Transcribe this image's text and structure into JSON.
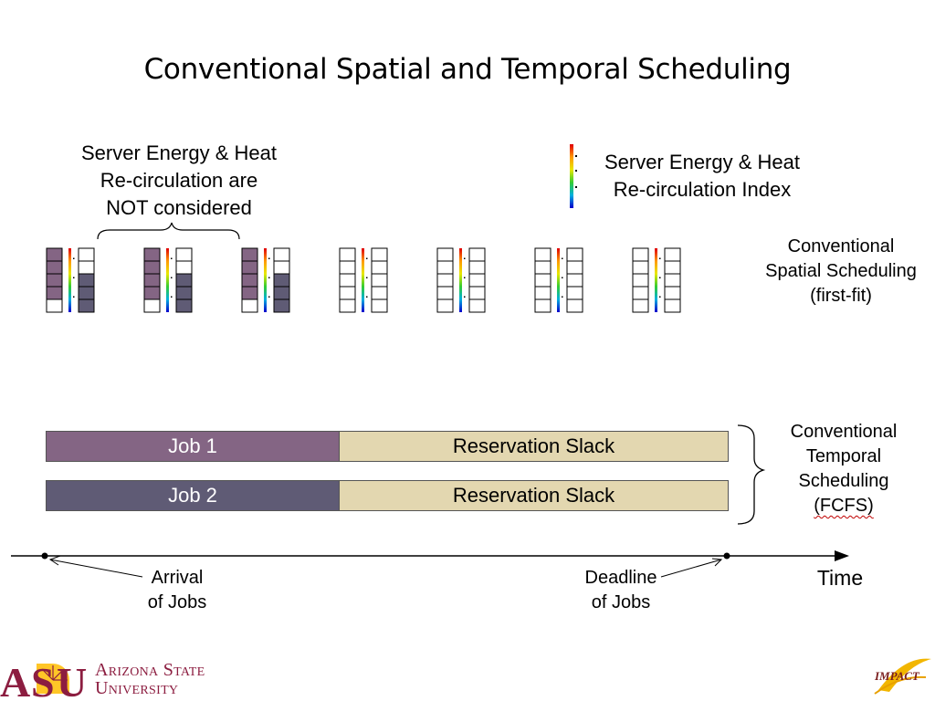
{
  "title": "Conventional Spatial and Temporal Scheduling",
  "not_considered_label": [
    "Server Energy & Heat",
    "Re-circulation are",
    "NOT considered"
  ],
  "legend_label": [
    "Server Energy & Heat",
    "Re-circulation Index"
  ],
  "spatial_label": [
    "Conventional",
    "Spatial Scheduling",
    "(first-fit)"
  ],
  "temporal_label": [
    "Conventional",
    "Temporal",
    "Scheduling",
    "(FCFS)"
  ],
  "jobs": [
    {
      "name": "Job 1",
      "slack": "Reservation Slack",
      "color": "#846584"
    },
    {
      "name": "Job 2",
      "slack": "Reservation Slack",
      "color": "#5f5b75"
    }
  ],
  "timeline": {
    "time_label": "Time",
    "arrival": [
      "Arrival",
      "of Jobs"
    ],
    "deadline": [
      "Deadline",
      "of Jobs"
    ]
  },
  "server_units": [
    {
      "left_used": 4,
      "right_used": 3
    },
    {
      "left_used": 4,
      "right_used": 3
    },
    {
      "left_used": 4,
      "right_used": 3
    },
    {
      "left_used": 0,
      "right_used": 0
    },
    {
      "left_used": 0,
      "right_used": 0
    },
    {
      "left_used": 0,
      "right_used": 0
    },
    {
      "left_used": 0,
      "right_used": 0
    }
  ],
  "colors": {
    "job1": "#846584",
    "job2": "#5f5b75",
    "slack": "#e3d7b0",
    "asu_maroon": "#8c1d40",
    "asu_gold": "#ffc627"
  },
  "logos": {
    "asu_line1": "Arizona State",
    "asu_line2": "University",
    "impact": "IMPACT"
  }
}
